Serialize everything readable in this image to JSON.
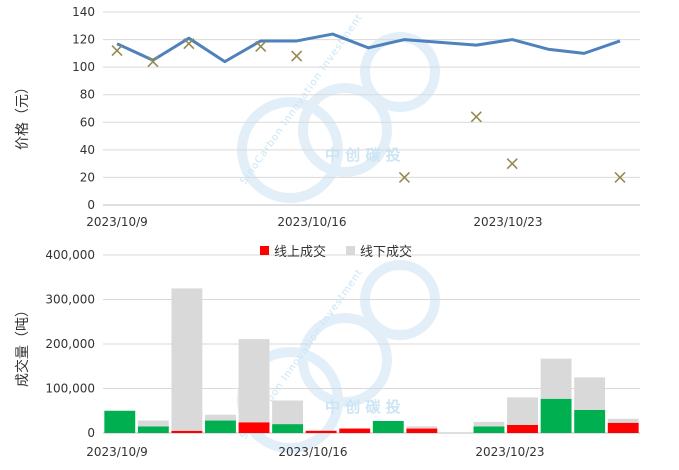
{
  "watermark": {
    "latin": "SinoCarbon Innovation Investment",
    "cn": "中 创 碳 投"
  },
  "chart_data": [
    {
      "type": "line",
      "ylabel": "价格（元）",
      "ylim": [
        0,
        140
      ],
      "yticks": [
        0,
        20,
        40,
        60,
        80,
        100,
        120,
        140
      ],
      "x_tick_labels": [
        "2023/10/9",
        "2023/10/16",
        "2023/10/23"
      ],
      "x": [
        "2023/10/9",
        "2023/10/10",
        "2023/10/11",
        "2023/10/12",
        "2023/10/13",
        "2023/10/16",
        "2023/10/17",
        "2023/10/18",
        "2023/10/19",
        "2023/10/20",
        "2023/10/23",
        "2023/10/24",
        "2023/10/25",
        "2023/10/26",
        "2023/10/27"
      ],
      "series": [
        {
          "style": "line",
          "color": "#4f81bd",
          "values": [
            117,
            105,
            121,
            104,
            119,
            119,
            124,
            114,
            120,
            118,
            116,
            120,
            113,
            110,
            119
          ]
        },
        {
          "style": "marker-x",
          "color": "#948a54",
          "values": [
            112,
            104,
            117,
            null,
            115,
            108,
            null,
            null,
            20,
            null,
            64,
            30,
            null,
            null,
            20
          ]
        }
      ]
    },
    {
      "type": "bar",
      "ylabel": "成交量（吨）",
      "ylim": [
        0,
        400000
      ],
      "yticks": [
        "0",
        "100,000",
        "200,000",
        "300,000",
        "400,000"
      ],
      "x_tick_labels": [
        "2023/10/9",
        "2023/10/16",
        "2023/10/23"
      ],
      "legend": [
        "线上成交",
        "线下成交"
      ],
      "legend_position": "top-center",
      "colors": {
        "online_up": "#00b050",
        "online_down": "#ff0000",
        "offline": "#d9d9d9"
      },
      "bars": [
        {
          "date": "2023/10/9",
          "online": 50000,
          "online_color": "online_up",
          "offline": 0
        },
        {
          "date": "2023/10/10",
          "online": 15000,
          "online_color": "online_up",
          "offline": 13000
        },
        {
          "date": "2023/10/11",
          "online": 5000,
          "online_color": "online_down",
          "offline": 320000
        },
        {
          "date": "2023/10/12",
          "online": 28000,
          "online_color": "online_up",
          "offline": 13000
        },
        {
          "date": "2023/10/13",
          "online": 24000,
          "online_color": "online_down",
          "offline": 187000
        },
        {
          "date": "2023/10/16",
          "online": 20000,
          "online_color": "online_up",
          "offline": 53000
        },
        {
          "date": "2023/10/17",
          "online": 5000,
          "online_color": "online_down",
          "offline": 0
        },
        {
          "date": "2023/10/18",
          "online": 10000,
          "online_color": "online_down",
          "offline": 0
        },
        {
          "date": "2023/10/19",
          "online": 27000,
          "online_color": "online_up",
          "offline": 0
        },
        {
          "date": "2023/10/20",
          "online": 10000,
          "online_color": "online_down",
          "offline": 5000
        },
        {
          "date": "2023/10/23",
          "online": 0,
          "online_color": "online_up",
          "offline": 0
        },
        {
          "date": "2023/10/24",
          "online": 15000,
          "online_color": "online_up",
          "offline": 10000
        },
        {
          "date": "2023/10/25",
          "online": 18000,
          "online_color": "online_down",
          "offline": 62000
        },
        {
          "date": "2023/10/26",
          "online": 77000,
          "online_color": "online_up",
          "offline": 90000
        },
        {
          "date": "2023/10/27",
          "online": 52000,
          "online_color": "online_up",
          "offline": 73000
        },
        {
          "date": "2023/10/30",
          "online": 23000,
          "online_color": "online_down",
          "offline": 9000
        }
      ]
    }
  ]
}
